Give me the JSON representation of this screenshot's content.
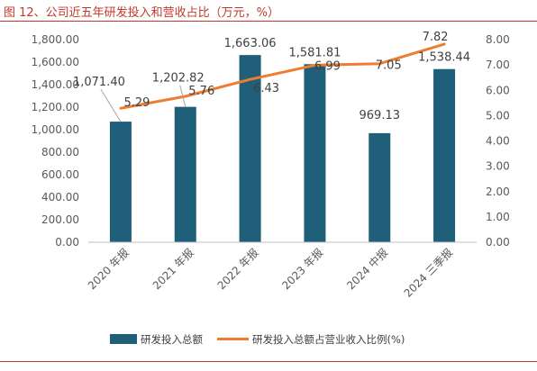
{
  "figure_title": "图 12、公司近五年研发投入和营收占比（万元，%）",
  "colors": {
    "bar": "#1f5f7a",
    "line": "#ed7d31",
    "axis": "#bfbfbf",
    "text": "#595959",
    "rule": "#c0392b"
  },
  "chart_data": {
    "type": "bar",
    "categories": [
      "2020 年报",
      "2021 年报",
      "2022 年报",
      "2023 年报",
      "2024 中报",
      "2024 三季报"
    ],
    "series": [
      {
        "name": "研发投入总额",
        "type": "bar",
        "axis": "left",
        "values": [
          1071.4,
          1202.82,
          1663.06,
          1581.81,
          969.13,
          1538.44
        ],
        "labels": [
          "1,071.40",
          "1,202.82",
          "1,663.06",
          "1,581.81",
          "969.13",
          "1,538.44"
        ]
      },
      {
        "name": "研发投入总额占营业收入比例(%)",
        "type": "line",
        "axis": "right",
        "values": [
          5.29,
          5.76,
          6.43,
          6.99,
          7.05,
          7.82
        ],
        "labels": [
          "5.29",
          "5.76",
          "6.43",
          "6.99",
          "7.05",
          "7.82"
        ]
      }
    ],
    "y_left": {
      "min": 0,
      "max": 1800,
      "step": 200,
      "tick_labels": [
        "0.00",
        "200.00",
        "400.00",
        "600.00",
        "800.00",
        "1,000.00",
        "1,200.00",
        "1,400.00",
        "1,600.00",
        "1,800.00"
      ]
    },
    "y_right": {
      "min": 0,
      "max": 8,
      "step": 1,
      "tick_labels": [
        "0.00",
        "1.00",
        "2.00",
        "3.00",
        "4.00",
        "5.00",
        "6.00",
        "7.00",
        "8.00"
      ]
    },
    "legend_position": "bottom",
    "grid": false
  }
}
